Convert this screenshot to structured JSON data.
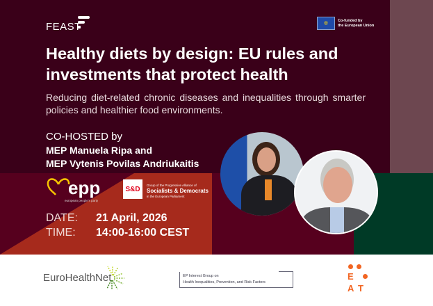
{
  "header": {
    "brand": "FEAST",
    "funding": {
      "line1": "Co-funded by",
      "line2": "the European Union"
    }
  },
  "title": "Healthy diets by design: EU rules and investments that protect health",
  "subtitle": "Reducing diet-related chronic diseases and inequalities through smarter policies and healthier food environments.",
  "cohosts": {
    "label": "CO-HOSTED by",
    "hosts": [
      "MEP Manuela Ripa and",
      "MEP Vytenis Povilas Andriukaitis"
    ]
  },
  "logos": {
    "epp": {
      "name": "epp",
      "tagline": "european people's party"
    },
    "sd": {
      "mark": "S&D",
      "line1": "Group of the Progressive Alliance of",
      "line2": "Socialists & Democrats",
      "line3": "in the European Parliament"
    }
  },
  "event": {
    "date_label": "DATE:",
    "date": "21 April, 2026",
    "time_label": "TIME:",
    "time": "14:00-16:00 CEST"
  },
  "footer": {
    "eurohealthnet": "EuroHealthNet",
    "interest_group": {
      "line1": "EP Interest Group on",
      "line2": "Health Inequalities, Prevention, and Risk Factors"
    },
    "eat": {
      "e": "E",
      "a": "A",
      "t": "T"
    }
  },
  "colors": {
    "dark_maroon": "#3a0019",
    "mauve": "#6d4750",
    "red": "#a62a1c",
    "maroon": "#56001e",
    "green": "#003a26",
    "eat_orange": "#f26522"
  }
}
